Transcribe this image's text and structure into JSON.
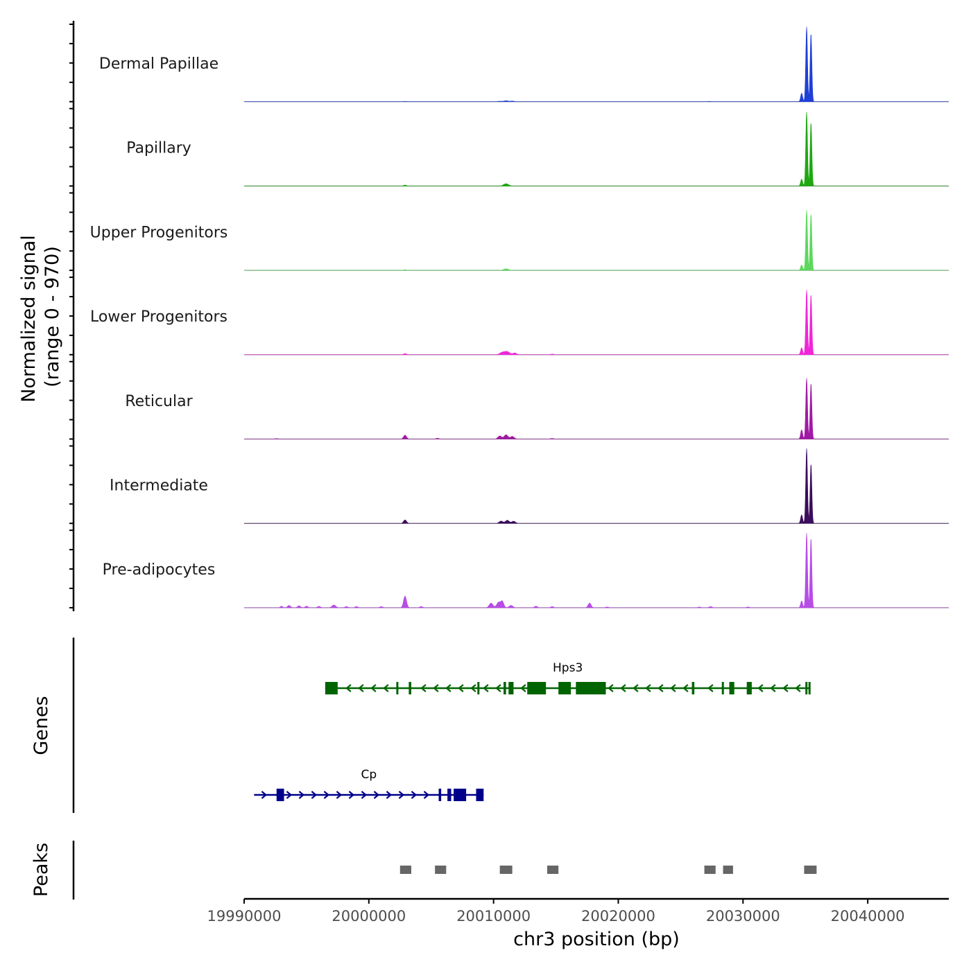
{
  "chart_data": {
    "type": "genome-coverage",
    "chromosome": "chr3",
    "xlabel": "chr3 position (bp)",
    "xlim": [
      19990000,
      20046500
    ],
    "x_ticks": [
      19990000,
      20000000,
      20010000,
      20020000,
      20030000,
      20040000
    ],
    "x_tick_labels": [
      "19990000",
      "20000000",
      "20010000",
      "20020000",
      "20030000",
      "20040000"
    ],
    "coverage": {
      "ylabel_line1": "Normalized signal",
      "ylabel_line2": "(range 0 - 970)",
      "ylim": [
        0,
        970
      ],
      "tracks": [
        {
          "name": "Dermal Papillae",
          "color": "#1f3fd6",
          "peaks": [
            [
              20002900,
              4,
              120
            ],
            [
              20010500,
              6,
              150
            ],
            [
              20011000,
              12,
              180
            ],
            [
              20011500,
              8,
              150
            ],
            [
              20027300,
              4,
              120
            ],
            [
              20034700,
              110,
              80
            ],
            [
              20035100,
              970,
              70
            ],
            [
              20035450,
              880,
              70
            ]
          ]
        },
        {
          "name": "Papillary",
          "color": "#1ea812",
          "peaks": [
            [
              20002900,
              12,
              120
            ],
            [
              20011000,
              30,
              200
            ],
            [
              20034700,
              90,
              80
            ],
            [
              20035100,
              960,
              70
            ],
            [
              20035450,
              820,
              70
            ]
          ]
        },
        {
          "name": "Upper Progenitors",
          "color": "#5dd85d",
          "peaks": [
            [
              20002900,
              8,
              120
            ],
            [
              20011000,
              20,
              200
            ],
            [
              20034700,
              70,
              80
            ],
            [
              20035100,
              780,
              70
            ],
            [
              20035450,
              730,
              70
            ]
          ]
        },
        {
          "name": "Lower Progenitors",
          "color": "#f026d8",
          "peaks": [
            [
              20002900,
              14,
              120
            ],
            [
              20010700,
              30,
              200
            ],
            [
              20011100,
              38,
              200
            ],
            [
              20011700,
              22,
              150
            ],
            [
              20014700,
              8,
              120
            ],
            [
              20034700,
              90,
              80
            ],
            [
              20035100,
              840,
              70
            ],
            [
              20035450,
              780,
              70
            ]
          ]
        },
        {
          "name": "Reticular",
          "color": "#a01aa5",
          "peaks": [
            [
              19992600,
              6,
              120
            ],
            [
              20002900,
              50,
              120
            ],
            [
              20005500,
              10,
              120
            ],
            [
              20010500,
              40,
              150
            ],
            [
              20011000,
              55,
              150
            ],
            [
              20011500,
              35,
              150
            ],
            [
              20014700,
              8,
              120
            ],
            [
              20034700,
              120,
              80
            ],
            [
              20035100,
              790,
              70
            ],
            [
              20035450,
              720,
              70
            ]
          ]
        },
        {
          "name": "Intermediate",
          "color": "#3b0d5c",
          "peaks": [
            [
              20002900,
              45,
              120
            ],
            [
              20010600,
              30,
              150
            ],
            [
              20011100,
              40,
              150
            ],
            [
              20011600,
              28,
              150
            ],
            [
              20034700,
              110,
              80
            ],
            [
              20035100,
              970,
              70
            ],
            [
              20035450,
              770,
              70
            ]
          ]
        },
        {
          "name": "Pre-adipocytes",
          "color": "#b84ce6",
          "peaks": [
            [
              19993000,
              20,
              100
            ],
            [
              19993600,
              30,
              120
            ],
            [
              19994400,
              25,
              120
            ],
            [
              19995000,
              20,
              120
            ],
            [
              19996000,
              18,
              120
            ],
            [
              19997200,
              35,
              150
            ],
            [
              19998200,
              15,
              120
            ],
            [
              19999000,
              15,
              120
            ],
            [
              20001000,
              15,
              120
            ],
            [
              20002900,
              150,
              120
            ],
            [
              20004200,
              15,
              120
            ],
            [
              20009800,
              60,
              150
            ],
            [
              20010400,
              70,
              150
            ],
            [
              20010700,
              80,
              120
            ],
            [
              20011400,
              30,
              150
            ],
            [
              20013400,
              20,
              120
            ],
            [
              20014700,
              15,
              120
            ],
            [
              20017700,
              60,
              120
            ],
            [
              20019100,
              10,
              120
            ],
            [
              20026500,
              10,
              120
            ],
            [
              20027400,
              15,
              120
            ],
            [
              20030400,
              10,
              120
            ],
            [
              20034700,
              90,
              80
            ],
            [
              20035100,
              970,
              70
            ],
            [
              20035450,
              900,
              70
            ]
          ]
        }
      ]
    },
    "genes_label": "Genes",
    "genes": [
      {
        "name": "Hps3",
        "strand": "-",
        "start": 19996500,
        "end": 20035400,
        "exons": [
          [
            19996500,
            19997500
          ],
          [
            20002200,
            20002300
          ],
          [
            20003200,
            20003400
          ],
          [
            20008700,
            20008800
          ],
          [
            20010800,
            20011000
          ],
          [
            20011200,
            20011600
          ],
          [
            20012700,
            20014200
          ],
          [
            20015200,
            20016200
          ],
          [
            20016600,
            20019000
          ],
          [
            20025900,
            20026100
          ],
          [
            20028300,
            20028400
          ],
          [
            20028900,
            20029300
          ],
          [
            20030300,
            20030700
          ],
          [
            20035000,
            20035100
          ],
          [
            20035250,
            20035400
          ]
        ]
      },
      {
        "name": "Cp",
        "strand": "+",
        "start": 19990800,
        "end": 20009200,
        "exons": [
          [
            19992600,
            19993200
          ],
          [
            20005600,
            20005800
          ],
          [
            20006300,
            20006600
          ],
          [
            20006800,
            20007800
          ],
          [
            20008600,
            20009200
          ]
        ]
      }
    ],
    "peaks_label": "Peaks",
    "peaks": [
      [
        20002500,
        20003400
      ],
      [
        20005300,
        20006200
      ],
      [
        20010500,
        20011500
      ],
      [
        20014300,
        20015200
      ],
      [
        20026900,
        20027800
      ],
      [
        20028400,
        20029200
      ],
      [
        20034900,
        20035900
      ]
    ]
  }
}
